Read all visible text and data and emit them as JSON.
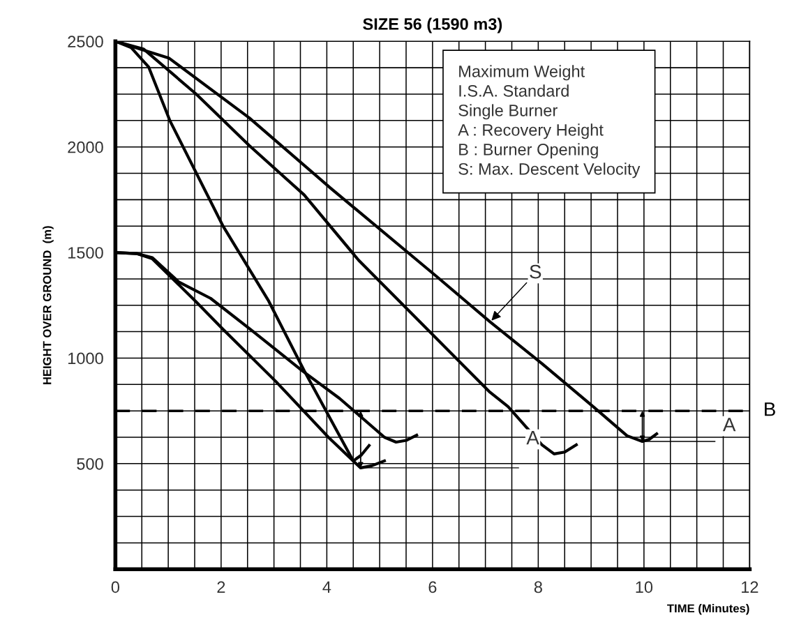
{
  "chart_data": {
    "type": "line",
    "title": "SIZE 56 (1590 m3)",
    "xlabel": "TIME (Minutes)",
    "ylabel": "HEIGHT OVER GROUND  (m)",
    "xlim": [
      0,
      12
    ],
    "ylim": [
      0,
      2500
    ],
    "xticks": [
      0,
      {
        "value": 0.5,
        "label": null
      },
      2,
      {
        "value": 1,
        "label": null
      },
      {
        "value": 1.5,
        "label": null
      },
      {
        "value": 2.5,
        "label": null
      },
      {
        "value": 3,
        "label": null
      },
      {
        "value": 3.5,
        "label": null
      },
      4,
      {
        "value": 4.5,
        "label": null
      },
      {
        "value": 5,
        "label": null
      },
      {
        "value": 5.5,
        "label": null
      },
      6,
      {
        "value": 6.5,
        "label": null
      },
      {
        "value": 7,
        "label": null
      },
      {
        "value": 7.5,
        "label": null
      },
      8,
      {
        "value": 8.5,
        "label": null
      },
      {
        "value": 9,
        "label": null
      },
      {
        "value": 9.5,
        "label": null
      },
      10,
      {
        "value": 10.5,
        "label": null
      },
      {
        "value": 11,
        "label": null
      },
      {
        "value": 11.5,
        "label": null
      },
      12
    ],
    "yticks": [
      {
        "value": 125,
        "label": null
      },
      {
        "value": 250,
        "label": null
      },
      {
        "value": 375,
        "label": null
      },
      500,
      {
        "value": 625,
        "label": null
      },
      {
        "value": 750,
        "label": null
      },
      {
        "value": 875,
        "label": null
      },
      1000,
      {
        "value": 1125,
        "label": null
      },
      {
        "value": 1250,
        "label": null
      },
      {
        "value": 1375,
        "label": null
      },
      1500,
      {
        "value": 1625,
        "label": null
      },
      {
        "value": 1750,
        "label": null
      },
      {
        "value": 1875,
        "label": null
      },
      2000,
      {
        "value": 2125,
        "label": null
      },
      {
        "value": 2250,
        "label": null
      },
      {
        "value": 2375,
        "label": null
      },
      2500
    ],
    "grid": true,
    "marker": "none",
    "line_style": "solid",
    "series": [
      {
        "color": "#000000",
        "x": [
          0,
          0.3,
          0.63,
          1.03,
          2.03,
          2.9,
          3.57,
          4.5,
          4.65,
          4.8
        ],
        "values": [
          2500,
          2470,
          2378,
          2125,
          1628,
          1270,
          941,
          513,
          540,
          586
        ]
      },
      {
        "color": "#000000",
        "x": [
          0,
          0.53,
          1.53,
          2.53,
          3.57,
          4.6,
          7.07,
          7.43,
          8.07,
          8.3,
          8.5,
          8.72
        ],
        "values": [
          2500,
          2464,
          2250,
          2007,
          1773,
          1464,
          842,
          770,
          589,
          546,
          555,
          589
        ]
      },
      {
        "color": "#000000",
        "x": [
          0,
          1.01,
          2.53,
          4.08,
          6.07,
          7.09,
          8.07,
          9.04,
          9.68,
          9.97,
          10.1,
          10.24
        ],
        "values": [
          2500,
          2421,
          2138,
          1803,
          1388,
          1171,
          974,
          770,
          632,
          605,
          615,
          641
        ]
      },
      {
        "color": "#000000",
        "x": [
          0,
          0.4,
          0.7,
          1.53,
          2.03,
          3.04,
          4.03,
          4.5,
          4.64,
          4.85,
          5.09
        ],
        "values": [
          1500,
          1495,
          1470,
          1266,
          1138,
          888,
          625,
          513,
          480,
          490,
          513
        ]
      },
      {
        "color": "#000000",
        "x": [
          0,
          0.4,
          0.7,
          1.2,
          1.8,
          2.56,
          3.53,
          4.24,
          5.09,
          5.31,
          5.5,
          5.7
        ],
        "values": [
          1500,
          1495,
          1475,
          1360,
          1283,
          1135,
          941,
          809,
          625,
          602,
          610,
          635
        ]
      }
    ],
    "ref_lines": [
      {
        "axis": "y",
        "value": 750,
        "label": "B",
        "line_style": "dashed",
        "color": "#000000"
      }
    ],
    "annotations": [
      "Maximum Weight",
      "I.S.A. Standard",
      "Single Burner",
      "A : Recovery Height",
      "B : Burner Opening",
      "S: Max. Descent Velocity",
      {
        "text": "S",
        "x": 7.09,
        "y": 1171
      },
      {
        "text": "A",
        "x": 4.64,
        "y": 480
      },
      {
        "text": "A",
        "x": 9.97,
        "y": 605
      }
    ]
  }
}
